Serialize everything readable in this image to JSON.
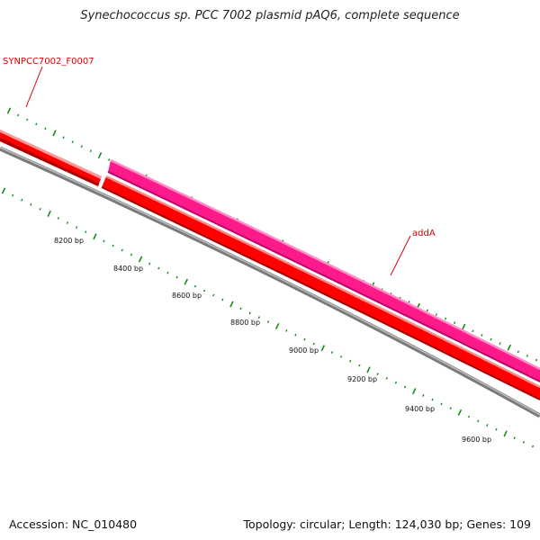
{
  "title": "Synechococcus sp. PCC 7002 plasmid pAQ6, complete sequence",
  "accession": "Accession: NC_010480",
  "summary": "Topology: circular; Length: 124,030 bp; Genes: 109",
  "colors": {
    "forward_gene": "#ff1a8c",
    "reverse_gene": "#ff0000",
    "backbone": "#888888",
    "ticks": "#1a8a1a",
    "label": "#e00000"
  },
  "gene_labels": [
    {
      "name": "SYNPCC7002_F0007",
      "strand": "reverse"
    },
    {
      "name": "addA",
      "strand": "forward"
    }
  ],
  "scale_labels": [
    "8200 bp",
    "8400 bp",
    "8600 bp",
    "8800 bp",
    "9000 bp",
    "9200 bp",
    "9400 bp",
    "9600 bp"
  ]
}
